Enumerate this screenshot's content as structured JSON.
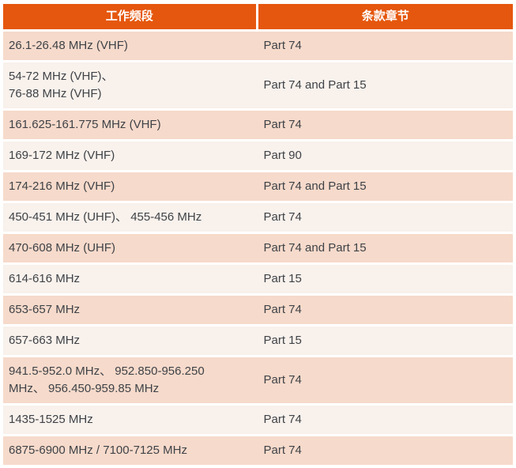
{
  "table": {
    "columns": [
      {
        "label": "工作频段"
      },
      {
        "label": "条款章节"
      }
    ],
    "rows": [
      {
        "band": "26.1-26.48 MHz (VHF)",
        "part": "Part 74"
      },
      {
        "band": "54-72 MHz (VHF)、\n76-88 MHz (VHF)",
        "part": "Part 74 and Part 15"
      },
      {
        "band": "161.625-161.775 MHz (VHF)",
        "part": "Part 74"
      },
      {
        "band": "169-172 MHz (VHF)",
        "part": "Part 90"
      },
      {
        "band": "174-216 MHz (VHF)",
        "part": "Part 74 and Part 15"
      },
      {
        "band": "450-451 MHz (UHF)、 455-456 MHz",
        "part": "Part 74"
      },
      {
        "band": "470-608 MHz (UHF)",
        "part": "Part 74 and Part 15"
      },
      {
        "band": "614-616 MHz",
        "part": "Part 15"
      },
      {
        "band": "653-657 MHz",
        "part": "Part 74"
      },
      {
        "band": "657-663 MHz",
        "part": "Part 15"
      },
      {
        "band": "941.5-952.0 MHz、 952.850-956.250\nMHz、 956.450-959.85 MHz",
        "part": "Part 74"
      },
      {
        "band": "1435-1525 MHz",
        "part": "Part 74"
      },
      {
        "band": "6875-6900 MHz / 7100-7125 MHz",
        "part": "Part 74"
      }
    ],
    "colors": {
      "header_bg": "#e5570e",
      "header_text": "#ffffff",
      "row_pink_bg": "#f6dacb",
      "row_light_bg": "#f8f1ec",
      "divider": "#ffffff",
      "cell_text": "#3f4247",
      "page_bg": "#ffffff"
    }
  }
}
